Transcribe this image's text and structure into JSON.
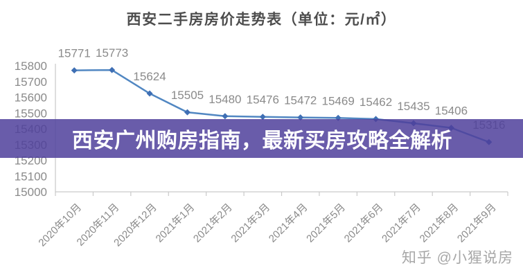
{
  "overlay": {
    "text": "西安广州购房指南，最新买房攻略全解析",
    "background_color": "#4F3F9B",
    "background_opacity": 0.85,
    "text_color": "#FFFFFF"
  },
  "watermark": {
    "text": "知乎 @小猩说房",
    "color": "#9E9E9E"
  },
  "chart_data": {
    "type": "line",
    "title": "西安二手房房价走势表（单位：元/㎡）",
    "unit": "元/㎡",
    "categories": [
      "2020年10月",
      "2020年11月",
      "2020年12月",
      "2021年1月",
      "2021年2月",
      "2021年3月",
      "2021年4月",
      "2021年5月",
      "2021年6月",
      "2021年7月",
      "2021年8月",
      "2021年9月"
    ],
    "values": [
      15771,
      15773,
      15624,
      15505,
      15480,
      15476,
      15472,
      15469,
      15462,
      15435,
      15406,
      15316
    ],
    "ylim": [
      15000,
      15800
    ],
    "ytick_step": 100,
    "grid": false,
    "legend": false,
    "marker": "diamond",
    "data_labels": true,
    "line_color": "#5187C2",
    "marker_color": "#3F6FB4",
    "axis_color": "#C9C9C9",
    "label_color": "#8A8A8A"
  }
}
